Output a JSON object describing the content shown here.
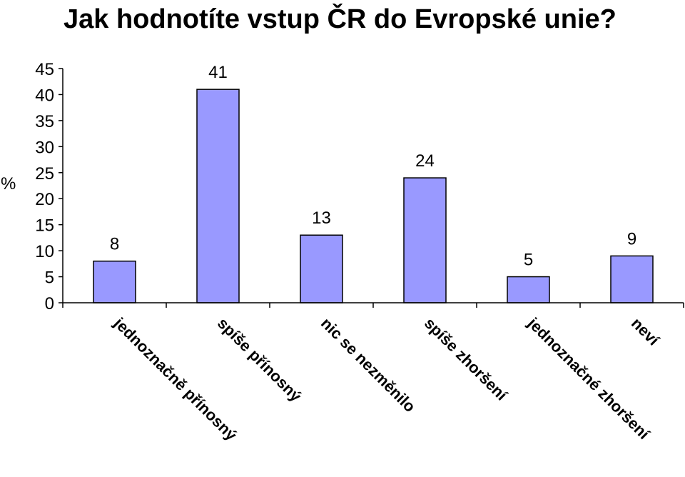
{
  "chart_data": {
    "type": "bar",
    "title": "Jak hodnotíte vstup ČR do Evropské unie?",
    "ylabel": "%",
    "xlabel": "",
    "ylim": [
      0,
      45
    ],
    "yticks": [
      "0",
      "5",
      "10",
      "15",
      "20",
      "25",
      "30",
      "35",
      "40",
      "45"
    ],
    "categories": [
      "jednoznačně přínosný",
      "spíše přínosný",
      "nic se nezměnilo",
      "spíše zhoršení",
      "jednoznačné zhoršení",
      "neví"
    ],
    "values": [
      8,
      41,
      13,
      24,
      5,
      9
    ],
    "data_labels": [
      "8",
      "41",
      "13",
      "24",
      "5",
      "9"
    ],
    "grid": false,
    "legend": "none",
    "colors": {
      "bar_fill": "#9999ff",
      "bar_stroke": "#000000",
      "axis": "#000000"
    }
  }
}
